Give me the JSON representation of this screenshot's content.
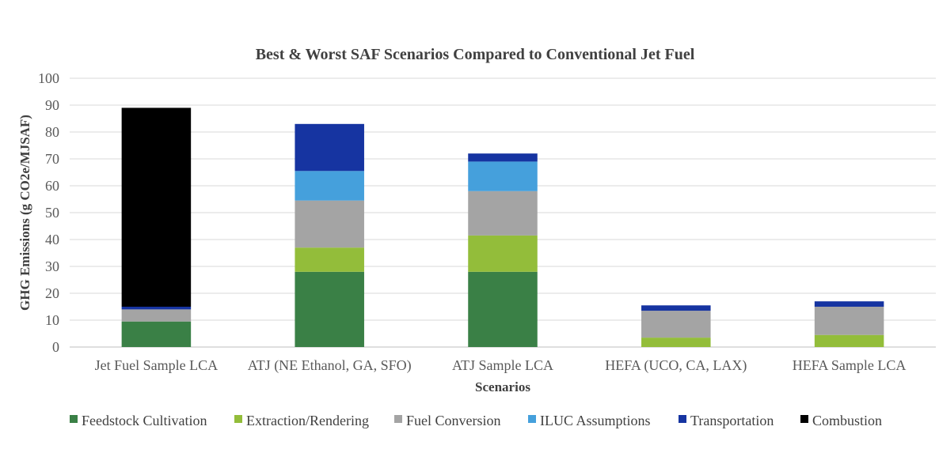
{
  "chart_data": {
    "type": "bar",
    "stacked": true,
    "title": "Best & Worst SAF Scenarios Compared to Conventional Jet Fuel",
    "xlabel": "Scenarios",
    "ylabel": "GHG Emissions (g CO2e/MJSAF)",
    "ylim": [
      0,
      100
    ],
    "yticks": [
      0,
      10,
      20,
      30,
      40,
      50,
      60,
      70,
      80,
      90,
      100
    ],
    "grid": true,
    "legend_position": "bottom",
    "categories": [
      "Jet Fuel Sample LCA",
      "ATJ (NE Ethanol, GA, SFO)",
      "ATJ Sample LCA",
      "HEFA (UCO, CA, LAX)",
      "HEFA Sample LCA"
    ],
    "series": [
      {
        "name": "Feedstock Cultivation",
        "color": "#3a8046",
        "values": [
          9.5,
          28,
          28,
          0,
          0
        ]
      },
      {
        "name": "Extraction/Rendering",
        "color": "#93bd3a",
        "values": [
          0,
          9,
          13.5,
          3.5,
          4.5
        ]
      },
      {
        "name": "Fuel Conversion",
        "color": "#a4a4a4",
        "values": [
          4.5,
          17.5,
          16.5,
          10,
          10.5
        ]
      },
      {
        "name": "ILUC Assumptions",
        "color": "#45a0dc",
        "values": [
          0,
          11,
          11,
          0,
          0
        ]
      },
      {
        "name": "Transportation",
        "color": "#1634a1",
        "values": [
          1,
          17.5,
          3,
          2,
          2
        ]
      },
      {
        "name": "Combustion",
        "color": "#000000",
        "values": [
          74,
          0,
          0,
          0,
          0
        ]
      }
    ]
  }
}
